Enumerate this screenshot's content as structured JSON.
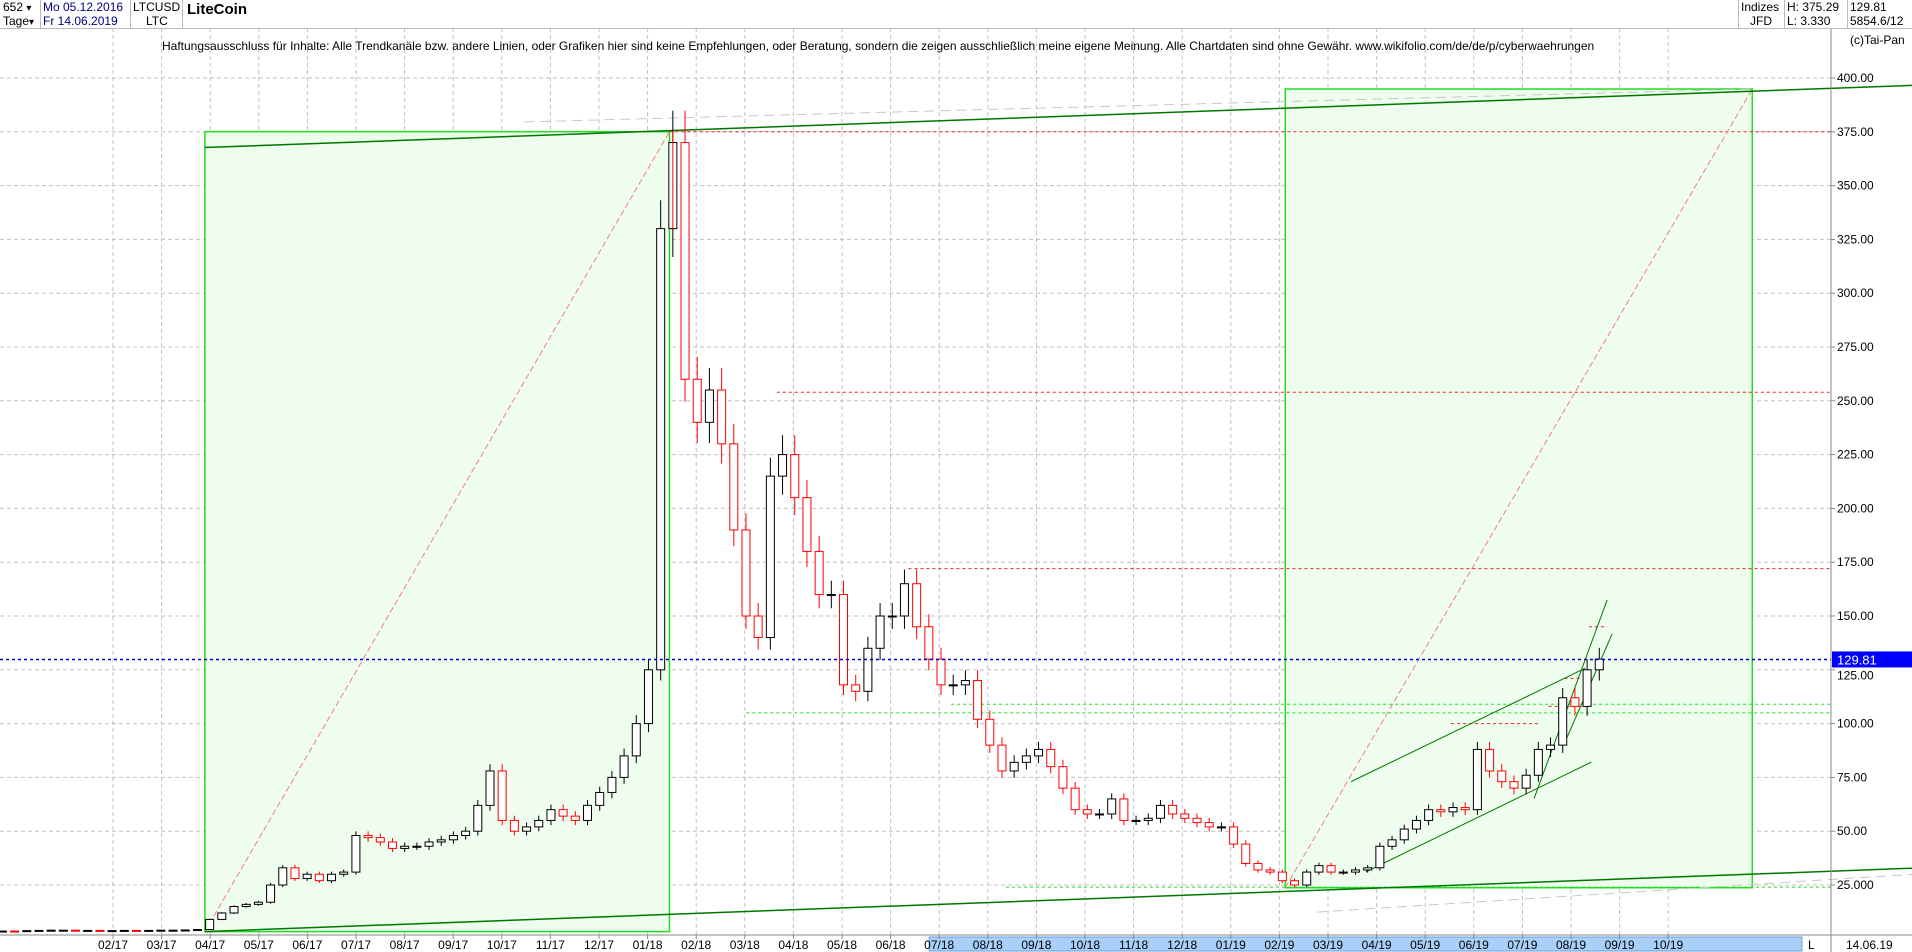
{
  "header": {
    "bars": "652",
    "bars_caret": "▾",
    "period": "Tage",
    "period_caret": "▾",
    "start_date": "Mo 05.12.2016",
    "end_date": "Fr 14.06.2019",
    "symbol": "LTCUSD",
    "symbol_short": "LTC",
    "name": "LiteCoin",
    "category": "Indizes",
    "exchange": "JFD",
    "high": "H: 375.29",
    "low": "L: 3.330",
    "last": "129.81",
    "extra": "5854.6/12",
    "copyright": "(c)Tai-Pan"
  },
  "disclaimer": "Haftungsausschluss für Inhalte: Alle Trendkanäle bzw. andere Linien, oder Grafiken hier sind keine Empfehlungen, oder Beratung, sondern die zeigen ausschließlich meine eigene Meinung. Alle Chartdaten sind ohne Gewähr.  www.wikifolio.com/de/de/p/cyberwaehrungen",
  "colors": {
    "up": "#000000",
    "down": "#ff0000",
    "box_fill": "#effdee",
    "box_border": "#22dd22",
    "trend": "#007700",
    "last_price": "#0000cc",
    "resistance": "#ee2222",
    "support": "#22dd22"
  },
  "chart_data": {
    "type": "candlestick",
    "interval": "weekly (approx. closes)",
    "period_start": "05.12.2016",
    "period_end": "14.06.2019",
    "ylim": [
      0,
      412.5
    ],
    "yticks": [
      "25.000",
      "50.00",
      "75.00",
      "100.00",
      "125.00",
      "150.00",
      "175.00",
      "200.00",
      "225.00",
      "250.00",
      "275.00",
      "300.00",
      "325.00",
      "350.00",
      "375.00",
      "400.00"
    ],
    "xticks": [
      "02/17",
      "03/17",
      "04/17",
      "05/17",
      "06/17",
      "07/17",
      "08/17",
      "09/17",
      "10/17",
      "11/17",
      "12/17",
      "01/18",
      "02/18",
      "03/18",
      "04/18",
      "05/18",
      "06/18",
      "07/18",
      "08/18",
      "09/18",
      "10/18",
      "11/18",
      "12/18",
      "01/19",
      "02/19",
      "03/19",
      "04/19",
      "05/19",
      "06/19",
      "07/19",
      "08/19",
      "09/19",
      "10/19"
    ],
    "x_end_label": "14.06.19",
    "x_scroll_label": "L",
    "last_price_label": "129.81",
    "last_price": 129.81,
    "high": 375.29,
    "low": 3.33,
    "closes": [
      3.6,
      3.5,
      3.8,
      3.9,
      4.0,
      4.0,
      3.8,
      3.9,
      3.8,
      3.8,
      3.9,
      3.8,
      3.9,
      4.0,
      4.0,
      4.1,
      4.3,
      9,
      12,
      15,
      16,
      17,
      25,
      33,
      28,
      30,
      27,
      30,
      31,
      48,
      47,
      45,
      42,
      43,
      43,
      45,
      46,
      48,
      50,
      62,
      78,
      55,
      50,
      52,
      55,
      60,
      57,
      55,
      62,
      68,
      75,
      85,
      100,
      125,
      330,
      370,
      260,
      240,
      255,
      230,
      190,
      150,
      140,
      215,
      225,
      205,
      180,
      160,
      160,
      118,
      115,
      135,
      150,
      150,
      165,
      145,
      130,
      118,
      118,
      120,
      102,
      90,
      78,
      82,
      85,
      88,
      80,
      70,
      60,
      58,
      58,
      65,
      55,
      55,
      56,
      62,
      58,
      56,
      54,
      52,
      52,
      44,
      35,
      32,
      31,
      27,
      25,
      31,
      34,
      31,
      31,
      32,
      33,
      43,
      46,
      51,
      55,
      60,
      59,
      61,
      60,
      88,
      78,
      73,
      70,
      76,
      88,
      90,
      112,
      108,
      125,
      130
    ],
    "levels": {
      "resistance": [
        375,
        254,
        172
      ],
      "support": [
        109,
        105,
        24
      ],
      "last": 129.81
    },
    "grid": true
  }
}
